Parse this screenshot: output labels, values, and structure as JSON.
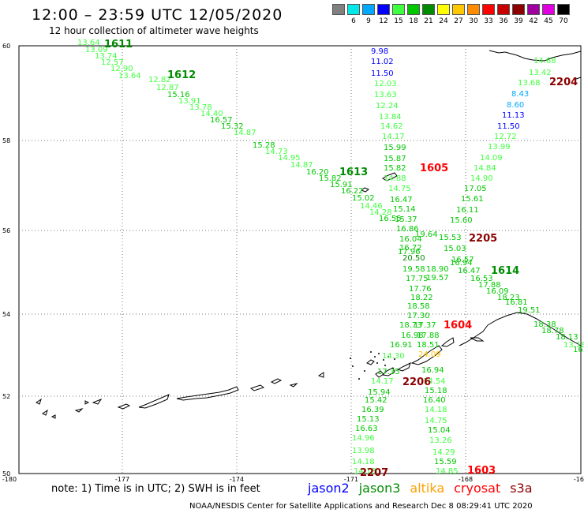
{
  "header": {
    "title": "12:00 – 23:59 UTC 12/05/2020",
    "subtitle": "12 hour collection of altimeter wave heights"
  },
  "scale": [
    {
      "label": "3",
      "color": "#808080"
    },
    {
      "label": "6",
      "color": "#00e8e8"
    },
    {
      "label": "9",
      "color": "#00a8ff"
    },
    {
      "label": "12",
      "color": "#0000ff"
    },
    {
      "label": "15",
      "color": "#40ff40"
    },
    {
      "label": "18",
      "color": "#00c800"
    },
    {
      "label": "21",
      "color": "#008c00"
    },
    {
      "label": "24",
      "color": "#ffff00"
    },
    {
      "label": "27",
      "color": "#ffc800"
    },
    {
      "label": "30",
      "color": "#ff8c00"
    },
    {
      "label": "33",
      "color": "#ff0000"
    },
    {
      "label": "36",
      "color": "#c80000"
    },
    {
      "label": "39",
      "color": "#8c0000"
    },
    {
      "label": "42",
      "color": "#a000a0"
    },
    {
      "label": "45",
      "color": "#e000e0"
    },
    {
      "label": "70",
      "color": "#000000"
    }
  ],
  "axes": {
    "lat_ticks": [
      "60",
      "58",
      "56",
      "54",
      "52",
      "50"
    ],
    "lon_ticks": [
      "-180",
      "-177",
      "-174",
      "-171",
      "-168",
      "-165"
    ]
  },
  "tracks": [
    {
      "time": "1611",
      "satellite": "jason3",
      "x": [
        -178.6,
        -176.5
      ],
      "y": [
        59.96,
        59.3
      ]
    },
    {
      "time": "1612",
      "satellite": "jason3",
      "x": [
        -176.8,
        -175.0
      ],
      "y": [
        59.4,
        59.0
      ]
    },
    {
      "time": "1613",
      "satellite": "jason3",
      "x": [
        -172.0,
        -169.7
      ],
      "y": [
        57.2,
        56.0
      ]
    },
    {
      "time": "1614",
      "satellite": "jason3",
      "x": [
        -166.0,
        -165.2
      ],
      "y": [
        55.6,
        54.2
      ]
    },
    {
      "time": "1603",
      "satellite": "cryosat",
      "x": [
        -168.2,
        -167.8
      ],
      "y": [
        52.6,
        50.0
      ]
    },
    {
      "time": "1604",
      "satellite": "cryosat",
      "x": [
        -168.4,
        -168.6
      ],
      "y": [
        55.6,
        52.8
      ]
    },
    {
      "time": "1605",
      "satellite": "cryosat",
      "x": [
        -169.4,
        -169.3
      ],
      "y": [
        58.9,
        56.2
      ]
    },
    {
      "time": "2204",
      "satellite": "s3a",
      "x": [
        -166.0,
        -167.6
      ],
      "y": [
        59.5,
        56.0
      ]
    },
    {
      "time": "2205",
      "satellite": "s3a",
      "x": [
        -167.6,
        -168.7
      ],
      "y": [
        56.0,
        52.8
      ]
    },
    {
      "time": "2206",
      "satellite": "s3a",
      "x": [
        -169.8,
        -170.4
      ],
      "y": [
        52.8,
        50.6
      ]
    },
    {
      "time": "2207",
      "satellite": "s3a",
      "x": [
        -170.4,
        -170.7
      ],
      "y": [
        50.6,
        50.0
      ]
    }
  ],
  "time_labels": [
    {
      "text": "1611",
      "color": "#008c00"
    },
    {
      "text": "1612",
      "color": "#008c00"
    },
    {
      "text": "1613",
      "color": "#008c00"
    },
    {
      "text": "1614",
      "color": "#008c00"
    },
    {
      "text": "1605",
      "color": "#ff0000"
    },
    {
      "text": "1604",
      "color": "#ff0000"
    },
    {
      "text": "1603",
      "color": "#ff0000"
    },
    {
      "text": "2204",
      "color": "#8c0000"
    },
    {
      "text": "2205",
      "color": "#8c0000"
    },
    {
      "text": "2206",
      "color": "#8c0000"
    },
    {
      "text": "2207",
      "color": "#8c0000"
    }
  ],
  "swh_values": [
    {
      "v": "13.64",
      "c": "#40ff40"
    },
    {
      "v": "13.09",
      "c": "#40ff40"
    },
    {
      "v": "13.74",
      "c": "#40ff40"
    },
    {
      "v": "12.57",
      "c": "#40ff40"
    },
    {
      "v": "12.90",
      "c": "#40ff40"
    },
    {
      "v": "13.64",
      "c": "#40ff40"
    },
    {
      "v": "12.82",
      "c": "#40ff40"
    },
    {
      "v": "12.87",
      "c": "#40ff40"
    },
    {
      "v": "15.16",
      "c": "#00c800"
    },
    {
      "v": "13.91",
      "c": "#40ff40"
    },
    {
      "v": "13.78",
      "c": "#40ff40"
    },
    {
      "v": "14.40",
      "c": "#40ff40"
    },
    {
      "v": "16.57",
      "c": "#00c800"
    },
    {
      "v": "15.32",
      "c": "#00c800"
    },
    {
      "v": "14.87",
      "c": "#40ff40"
    },
    {
      "v": "15.28",
      "c": "#00c800"
    },
    {
      "v": "14.73",
      "c": "#40ff40"
    },
    {
      "v": "14.95",
      "c": "#40ff40"
    },
    {
      "v": "14.87",
      "c": "#40ff40"
    },
    {
      "v": "16.20",
      "c": "#00c800"
    },
    {
      "v": "15.82",
      "c": "#00c800"
    },
    {
      "v": "15.91",
      "c": "#00c800"
    },
    {
      "v": "16.22",
      "c": "#00c800"
    },
    {
      "v": "15.02",
      "c": "#00c800"
    },
    {
      "v": "14.46",
      "c": "#40ff40"
    },
    {
      "v": "14.28",
      "c": "#40ff40"
    },
    {
      "v": "16.55",
      "c": "#00c800"
    },
    {
      "v": "9.98",
      "c": "#0000ff"
    },
    {
      "v": "11.02",
      "c": "#0000ff"
    },
    {
      "v": "11.50",
      "c": "#0000ff"
    },
    {
      "v": "12.03",
      "c": "#40ff40"
    },
    {
      "v": "13.63",
      "c": "#40ff40"
    },
    {
      "v": "12.24",
      "c": "#40ff40"
    },
    {
      "v": "13.84",
      "c": "#40ff40"
    },
    {
      "v": "14.62",
      "c": "#40ff40"
    },
    {
      "v": "14.17",
      "c": "#40ff40"
    },
    {
      "v": "15.99",
      "c": "#00c800"
    },
    {
      "v": "15.87",
      "c": "#00c800"
    },
    {
      "v": "15.82",
      "c": "#00c800"
    },
    {
      "v": "14.88",
      "c": "#40ff40"
    },
    {
      "v": "14.75",
      "c": "#40ff40"
    },
    {
      "v": "16.47",
      "c": "#00c800"
    },
    {
      "v": "15.14",
      "c": "#00c800"
    },
    {
      "v": "15.37",
      "c": "#00c800"
    },
    {
      "v": "16.86",
      "c": "#00c800"
    },
    {
      "v": "16.04",
      "c": "#00c800"
    },
    {
      "v": "17.96",
      "c": "#00c800"
    },
    {
      "v": "19.64",
      "c": "#00c800"
    },
    {
      "v": "16.72",
      "c": "#00c800"
    },
    {
      "v": "20.50",
      "c": "#008c00"
    },
    {
      "v": "19.58",
      "c": "#00c800"
    },
    {
      "v": "18.90",
      "c": "#00c800"
    },
    {
      "v": "17.75",
      "c": "#00c800"
    },
    {
      "v": "19.57",
      "c": "#00c800"
    },
    {
      "v": "17.76",
      "c": "#00c800"
    },
    {
      "v": "18.22",
      "c": "#00c800"
    },
    {
      "v": "18.58",
      "c": "#00c800"
    },
    {
      "v": "17.30",
      "c": "#00c800"
    },
    {
      "v": "18.73",
      "c": "#00c800"
    },
    {
      "v": "17.37",
      "c": "#00c800"
    },
    {
      "v": "16.98",
      "c": "#00c800"
    },
    {
      "v": "17.88",
      "c": "#00c800"
    },
    {
      "v": "16.91",
      "c": "#00c800"
    },
    {
      "v": "18.51",
      "c": "#00c800"
    },
    {
      "v": "14.30",
      "c": "#40ff40"
    },
    {
      "v": "24.09",
      "c": "#ffc800"
    },
    {
      "v": "17.35",
      "c": "#00c800"
    },
    {
      "v": "16.94",
      "c": "#00c800"
    },
    {
      "v": "14.17",
      "c": "#40ff40"
    },
    {
      "v": "14.54",
      "c": "#40ff40"
    },
    {
      "v": "15.94",
      "c": "#00c800"
    },
    {
      "v": "15.18",
      "c": "#00c800"
    },
    {
      "v": "15.42",
      "c": "#00c800"
    },
    {
      "v": "16.40",
      "c": "#00c800"
    },
    {
      "v": "16.39",
      "c": "#00c800"
    },
    {
      "v": "14.18",
      "c": "#40ff40"
    },
    {
      "v": "15.13",
      "c": "#00c800"
    },
    {
      "v": "14.75",
      "c": "#40ff40"
    },
    {
      "v": "16.63",
      "c": "#00c800"
    },
    {
      "v": "15.04",
      "c": "#00c800"
    },
    {
      "v": "14.96",
      "c": "#40ff40"
    },
    {
      "v": "13.26",
      "c": "#40ff40"
    },
    {
      "v": "13.98",
      "c": "#40ff40"
    },
    {
      "v": "14.29",
      "c": "#40ff40"
    },
    {
      "v": "14.18",
      "c": "#40ff40"
    },
    {
      "v": "15.59",
      "c": "#00c800"
    },
    {
      "v": "14.13",
      "c": "#40ff40"
    },
    {
      "v": "14.85",
      "c": "#40ff40"
    },
    {
      "v": "14.68",
      "c": "#40ff40"
    },
    {
      "v": "13.42",
      "c": "#40ff40"
    },
    {
      "v": "13.68",
      "c": "#40ff40"
    },
    {
      "v": "8.43",
      "c": "#00a8ff"
    },
    {
      "v": "8.60",
      "c": "#00a8ff"
    },
    {
      "v": "11.13",
      "c": "#0000ff"
    },
    {
      "v": "11.50",
      "c": "#0000ff"
    },
    {
      "v": "12.72",
      "c": "#40ff40"
    },
    {
      "v": "13.99",
      "c": "#40ff40"
    },
    {
      "v": "14.09",
      "c": "#40ff40"
    },
    {
      "v": "14.84",
      "c": "#40ff40"
    },
    {
      "v": "14.90",
      "c": "#40ff40"
    },
    {
      "v": "17.05",
      "c": "#00c800"
    },
    {
      "v": "15.61",
      "c": "#00c800"
    },
    {
      "v": "16.11",
      "c": "#00c800"
    },
    {
      "v": "15.60",
      "c": "#00c800"
    },
    {
      "v": "15.53",
      "c": "#00c800"
    },
    {
      "v": "15.03",
      "c": "#00c800"
    },
    {
      "v": "16.57",
      "c": "#00c800"
    },
    {
      "v": "16.94",
      "c": "#00c800"
    },
    {
      "v": "16.47",
      "c": "#00c800"
    },
    {
      "v": "16.53",
      "c": "#00c800"
    },
    {
      "v": "17.88",
      "c": "#00c800"
    },
    {
      "v": "16.09",
      "c": "#00c800"
    },
    {
      "v": "18.23",
      "c": "#00c800"
    },
    {
      "v": "16.81",
      "c": "#00c800"
    },
    {
      "v": "19.51",
      "c": "#00c800"
    },
    {
      "v": "18.38",
      "c": "#00c800"
    },
    {
      "v": "18.78",
      "c": "#00c800"
    },
    {
      "v": "18.13",
      "c": "#00c800"
    },
    {
      "v": "13.18",
      "c": "#40ff40"
    },
    {
      "v": "16.73",
      "c": "#00c800"
    },
    {
      "v": "15.40",
      "c": "#00c800"
    },
    {
      "v": "18.08",
      "c": "#00c800"
    },
    {
      "v": "18.93",
      "c": "#00c800"
    },
    {
      "v": "19.19",
      "c": "#00c800"
    },
    {
      "v": "20.",
      "c": "#008c00"
    }
  ],
  "footer": {
    "note": "note: 1) Time is in UTC; 2) SWH is in feet",
    "legend": [
      {
        "name": "jason2",
        "color": "#0000ff"
      },
      {
        "name": "jason3",
        "color": "#008c00"
      },
      {
        "name": "altika",
        "color": "#ffa000"
      },
      {
        "name": "cryosat",
        "color": "#ff0000"
      },
      {
        "name": "s3a",
        "color": "#8c0000"
      }
    ],
    "credit": "NOAA/NESDIS Center for Satellite Applications and Research    Dec  8 08:29:41 UTC 2020"
  }
}
